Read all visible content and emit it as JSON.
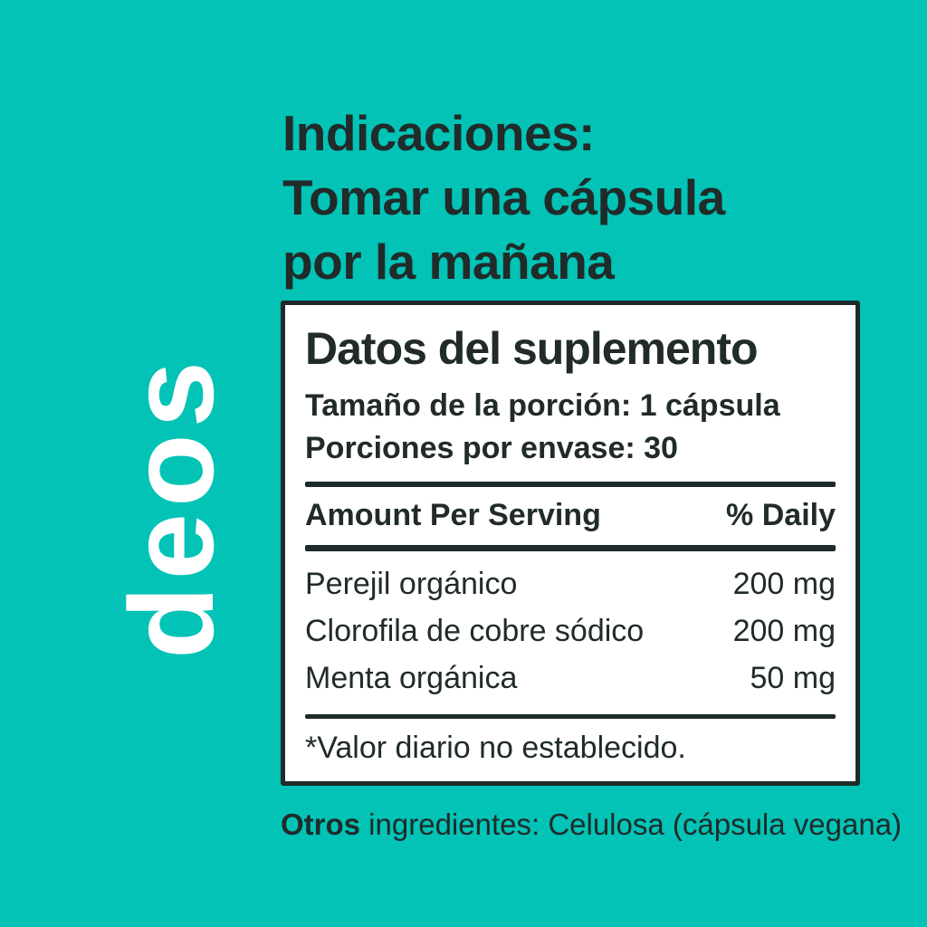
{
  "brand": {
    "name": "deos"
  },
  "colors": {
    "background": "#02C3B6",
    "text_dark": "#202B2A",
    "panel_background": "#FFFFFF",
    "panel_border": "#1E2B2A",
    "brand_text": "#FFFFFF"
  },
  "directions": {
    "line1": "Indicaciones:",
    "line2": "Tomar una cápsula",
    "line3": "por la mañana"
  },
  "supplement_panel": {
    "title": "Datos del suplemento",
    "serving_size": "Tamaño de la porción: 1 cápsula",
    "servings_per_container": "Porciones por envase: 30",
    "table": {
      "header_left": "Amount Per Serving",
      "header_right": "% Daily",
      "rows": [
        {
          "name": "Perejil orgánico",
          "amount": "200 mg"
        },
        {
          "name": "Clorofila de cobre sódico",
          "amount": "200 mg"
        },
        {
          "name": "Menta orgánica",
          "amount": "50 mg"
        }
      ]
    },
    "footnote": "*Valor diario no establecido."
  },
  "other_ingredients": {
    "label_bold": "Otros",
    "text": " ingredientes: Celulosa (cápsula vegana)"
  }
}
